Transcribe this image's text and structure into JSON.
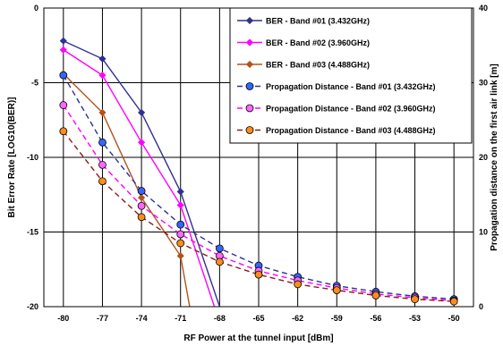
{
  "chart_data": {
    "type": "line",
    "title": "",
    "xlabel": "RF Power at the tunnel input [dBm]",
    "ylabel": "Bit Error Rate [LOG10(BER)]",
    "y2label": "Propagation distance on the first air link [m]",
    "x_ticks": [
      -80,
      -77,
      -74,
      -71,
      -68,
      -65,
      -62,
      -59,
      -56,
      -53,
      -50
    ],
    "y_ticks": [
      0,
      -5,
      -10,
      -15,
      -20
    ],
    "y2_ticks": [
      40,
      30,
      20,
      10,
      0
    ],
    "xlim": [
      -81.5,
      -48.5
    ],
    "ylim": [
      -20,
      0
    ],
    "y2lim": [
      0,
      40
    ],
    "grid": true,
    "legend_position": "top-right",
    "series": [
      {
        "name": "BER - Band #01 (3.432GHz)",
        "axis": "left",
        "style": "solid",
        "marker": "diamond",
        "color": "#2e3192",
        "points": [
          [
            -80,
            -2.2
          ],
          [
            -77,
            -3.4
          ],
          [
            -74,
            -7.0
          ],
          [
            -71,
            -12.3
          ],
          [
            -68,
            -20.0
          ]
        ]
      },
      {
        "name": "BER - Band #02 (3.960GHz)",
        "axis": "left",
        "style": "solid",
        "marker": "diamond",
        "color": "#ff00ff",
        "points": [
          [
            -80,
            -2.8
          ],
          [
            -77,
            -4.5
          ],
          [
            -74,
            -9.0
          ],
          [
            -71,
            -13.2
          ],
          [
            -68.4,
            -20.0
          ]
        ]
      },
      {
        "name": "BER - Band #03 (4.488GHz)",
        "axis": "left",
        "style": "solid",
        "marker": "diamond",
        "color": "#b5521b",
        "points": [
          [
            -80,
            -4.4
          ],
          [
            -77,
            -7.0
          ],
          [
            -74,
            -12.7
          ],
          [
            -71,
            -16.6
          ],
          [
            -70.3,
            -20.0
          ]
        ]
      },
      {
        "name": "Propagation Distance - Band #01 (3.432GHz)",
        "axis": "right",
        "style": "dashed",
        "marker": "circle",
        "color": "#2e3192",
        "points": [
          [
            -80,
            31.0
          ],
          [
            -77,
            22.0
          ],
          [
            -74,
            15.5
          ],
          [
            -71,
            11.0
          ],
          [
            -68,
            7.8
          ],
          [
            -65,
            5.5
          ],
          [
            -62,
            4.0
          ],
          [
            -59,
            2.8
          ],
          [
            -56,
            2.0
          ],
          [
            -53,
            1.4
          ],
          [
            -50,
            1.0
          ]
        ]
      },
      {
        "name": "Propagation Distance - Band #02 (3.960GHz)",
        "axis": "right",
        "style": "dashed",
        "marker": "circle",
        "color": "#ff00ff",
        "points": [
          [
            -80,
            27.0
          ],
          [
            -77,
            19.0
          ],
          [
            -74,
            13.5
          ],
          [
            -71,
            9.7
          ],
          [
            -68,
            6.8
          ],
          [
            -65,
            4.8
          ],
          [
            -62,
            3.5
          ],
          [
            -59,
            2.5
          ],
          [
            -56,
            1.7
          ],
          [
            -53,
            1.2
          ],
          [
            -50,
            0.8
          ]
        ]
      },
      {
        "name": "Propagation Distance - Band #03 (4.488GHz)",
        "axis": "right",
        "style": "dashed",
        "marker": "circle",
        "color": "#8b1a1a",
        "points": [
          [
            -80,
            23.5
          ],
          [
            -77,
            16.8
          ],
          [
            -74,
            12.0
          ],
          [
            -71,
            8.5
          ],
          [
            -68,
            6.0
          ],
          [
            -65,
            4.3
          ],
          [
            -62,
            3.0
          ],
          [
            -59,
            2.2
          ],
          [
            -56,
            1.5
          ],
          [
            -53,
            1.0
          ],
          [
            -50,
            0.7
          ]
        ]
      }
    ]
  }
}
